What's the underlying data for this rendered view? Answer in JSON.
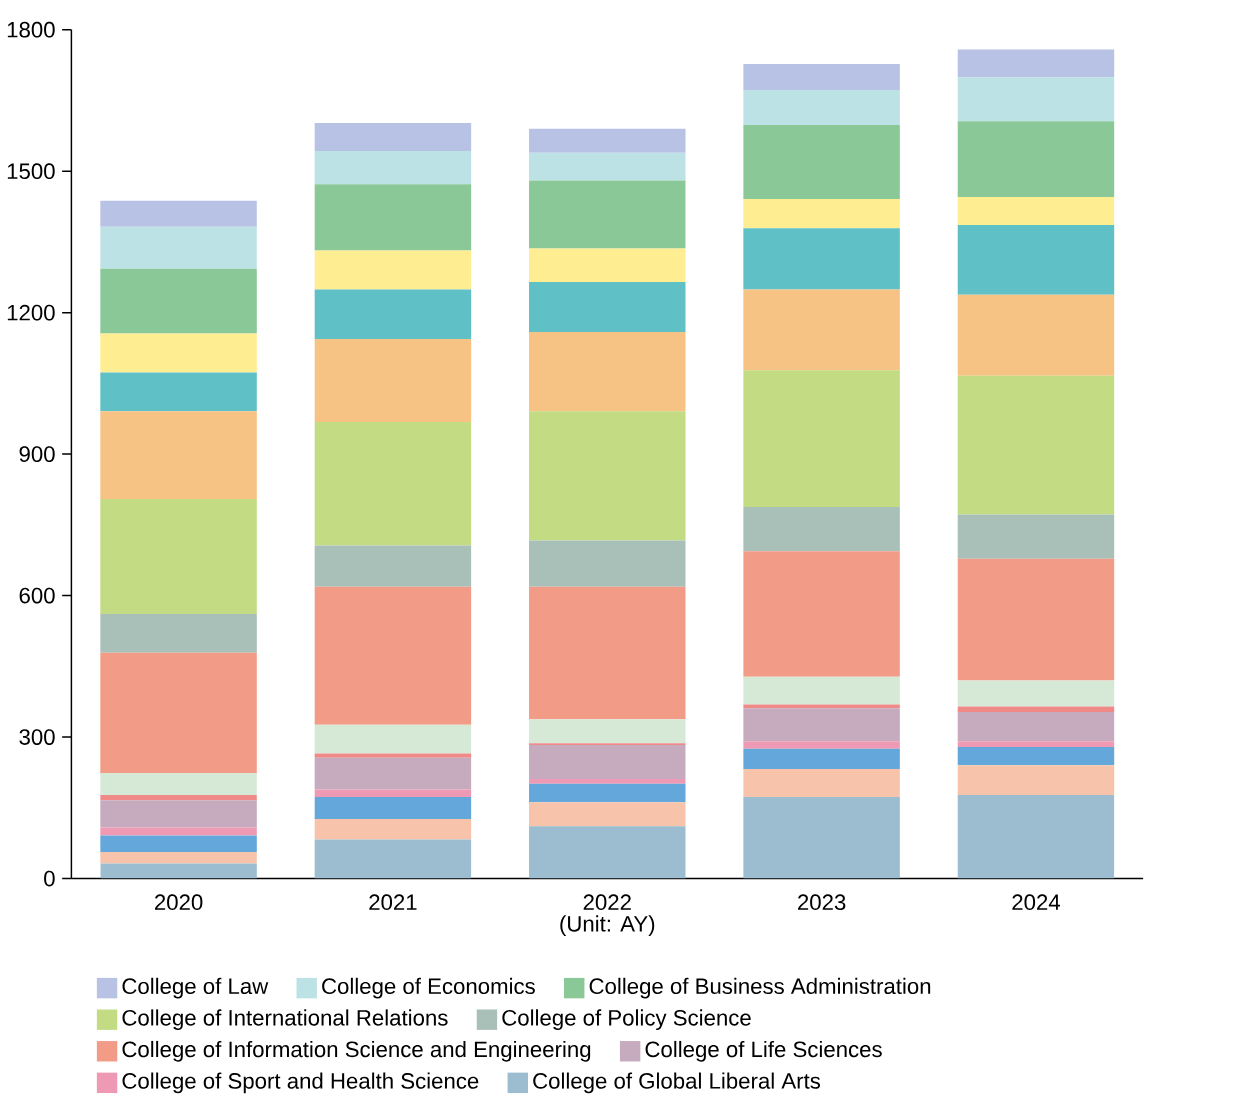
{
  "chart_data": {
    "type": "bar",
    "stacked": true,
    "xlabel": "(Unit: AY)",
    "categories": [
      "2020",
      "2021",
      "2022",
      "2023",
      "2024"
    ],
    "ylim": [
      0,
      1800
    ],
    "yticks": [
      0,
      300,
      600,
      900,
      1200,
      1500,
      1800
    ],
    "legend": "bottom",
    "series": [
      {
        "name": "College of Global Liberal Arts",
        "color": "#9bbdcf",
        "values": [
          32,
          83,
          111,
          173,
          177
        ]
      },
      {
        "color": "#f7c4ab",
        "values": [
          24,
          43,
          51,
          59,
          63
        ]
      },
      {
        "color": "#64a8db",
        "values": [
          35,
          47,
          39,
          43,
          39
        ]
      },
      {
        "name": "College of Sport and Health Science",
        "color": "#ef9ab5",
        "values": [
          17,
          16,
          10,
          16,
          12
        ]
      },
      {
        "name": "College of Life Sciences",
        "color": "#c5abbd",
        "values": [
          58,
          67,
          72,
          70,
          62
        ]
      },
      {
        "color": "#ef8a88",
        "values": [
          11,
          9,
          4,
          8,
          12
        ]
      },
      {
        "color": "#d6e9d7",
        "values": [
          47,
          61,
          51,
          59,
          55
        ]
      },
      {
        "name": "College of Information Science and Engineering",
        "color": "#f29c87",
        "values": [
          255,
          293,
          281,
          266,
          258
        ]
      },
      {
        "name": "College of Policy Science",
        "color": "#a8c0b8",
        "values": [
          82,
          87,
          98,
          94,
          94
        ]
      },
      {
        "name": "College of International Relations",
        "color": "#c3dc83",
        "values": [
          244,
          262,
          274,
          290,
          294
        ]
      },
      {
        "color": "#f7c385",
        "values": [
          186,
          176,
          168,
          171,
          172
        ]
      },
      {
        "color": "#5fc0c6",
        "values": [
          82,
          105,
          106,
          130,
          148
        ]
      },
      {
        "color": "#feed91",
        "values": [
          83,
          83,
          71,
          62,
          59
        ]
      },
      {
        "name": "College of Business Administration",
        "color": "#8bc897",
        "values": [
          137,
          140,
          144,
          157,
          161
        ]
      },
      {
        "name": "College of Economics",
        "color": "#bde2e6",
        "values": [
          89,
          71,
          59,
          74,
          93
        ]
      },
      {
        "name": "College of Law",
        "color": "#b8c2e4",
        "values": [
          55,
          59,
          51,
          55,
          59
        ]
      }
    ]
  }
}
